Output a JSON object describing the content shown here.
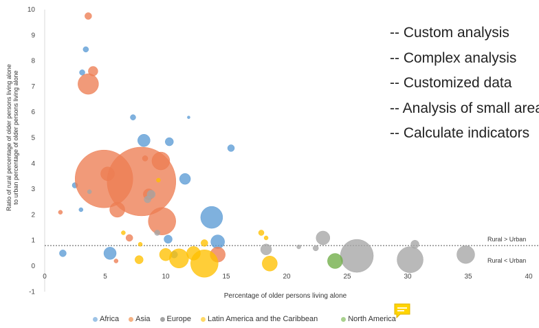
{
  "chart_data": {
    "type": "scatter",
    "xlabel": "Percentage of older persons living alone",
    "ylabel": "Ratio of rural percentage of older persons living alone to urban percentage of older persons living alone",
    "x_ticks": [
      "0",
      "5",
      "10",
      "15",
      "20",
      "25",
      "30",
      "35",
      "40"
    ],
    "y_ticks": [
      "-1",
      "0",
      "1",
      "2",
      "3",
      "4",
      "5",
      "6",
      "7",
      "8",
      "9",
      "10"
    ],
    "xlim": [
      0,
      40
    ],
    "ylim": [
      -1,
      10
    ],
    "reference_line": {
      "y": 0.8,
      "style": "dotted"
    },
    "annotations": [
      "Rural > Urban",
      "Rural < Urban"
    ],
    "series": [
      {
        "name": "Africa",
        "color": "#5b9bd5",
        "points": [
          {
            "x": 1.5,
            "y": 0.5,
            "s": 5
          },
          {
            "x": 3.4,
            "y": 8.45,
            "s": 4
          },
          {
            "x": 3.1,
            "y": 7.55,
            "s": 4
          },
          {
            "x": 2.5,
            "y": 3.15,
            "s": 4
          },
          {
            "x": 3.0,
            "y": 2.2,
            "s": 3
          },
          {
            "x": 7.3,
            "y": 5.8,
            "s": 4
          },
          {
            "x": 8.2,
            "y": 4.9,
            "s": 9
          },
          {
            "x": 10.3,
            "y": 4.85,
            "s": 6
          },
          {
            "x": 11.9,
            "y": 5.8,
            "s": 2
          },
          {
            "x": 15.4,
            "y": 4.6,
            "s": 5
          },
          {
            "x": 11.6,
            "y": 3.4,
            "s": 8
          },
          {
            "x": 13.8,
            "y": 1.9,
            "s": 16
          },
          {
            "x": 14.3,
            "y": 0.95,
            "s": 10
          },
          {
            "x": 10.2,
            "y": 1.05,
            "s": 6
          },
          {
            "x": 5.4,
            "y": 0.5,
            "s": 9
          },
          {
            "x": 10.7,
            "y": 0.45,
            "s": 5
          }
        ]
      },
      {
        "name": "Asia",
        "color": "#ed7d53",
        "points": [
          {
            "x": 3.6,
            "y": 9.75,
            "s": 5
          },
          {
            "x": 4.0,
            "y": 7.6,
            "s": 7
          },
          {
            "x": 3.6,
            "y": 7.1,
            "s": 15
          },
          {
            "x": 4.9,
            "y": 3.4,
            "s": 42
          },
          {
            "x": 8.0,
            "y": 3.3,
            "s": 50
          },
          {
            "x": 9.6,
            "y": 4.1,
            "s": 13
          },
          {
            "x": 5.2,
            "y": 3.6,
            "s": 10
          },
          {
            "x": 6.0,
            "y": 2.2,
            "s": 11
          },
          {
            "x": 9.7,
            "y": 1.75,
            "s": 20
          },
          {
            "x": 8.6,
            "y": 2.8,
            "s": 8
          },
          {
            "x": 7.0,
            "y": 1.1,
            "s": 5
          },
          {
            "x": 5.9,
            "y": 0.2,
            "s": 3
          },
          {
            "x": 1.3,
            "y": 2.1,
            "s": 3
          },
          {
            "x": 14.3,
            "y": 0.45,
            "s": 11
          },
          {
            "x": 8.3,
            "y": 4.2,
            "s": 4
          }
        ]
      },
      {
        "name": "Europe",
        "color": "#a5a5a5",
        "points": [
          {
            "x": 23.0,
            "y": 1.1,
            "s": 10
          },
          {
            "x": 25.8,
            "y": 0.4,
            "s": 24
          },
          {
            "x": 30.2,
            "y": 0.25,
            "s": 19
          },
          {
            "x": 34.8,
            "y": 0.45,
            "s": 13
          },
          {
            "x": 18.3,
            "y": 0.65,
            "s": 8
          },
          {
            "x": 30.6,
            "y": 0.85,
            "s": 6
          },
          {
            "x": 21.0,
            "y": 0.75,
            "s": 3
          },
          {
            "x": 22.4,
            "y": 0.7,
            "s": 4
          },
          {
            "x": 8.8,
            "y": 2.8,
            "s": 6
          },
          {
            "x": 8.5,
            "y": 2.6,
            "s": 5
          },
          {
            "x": 9.3,
            "y": 1.3,
            "s": 4
          },
          {
            "x": 3.7,
            "y": 2.9,
            "s": 3
          }
        ]
      },
      {
        "name": "Latin America and the Caribbean",
        "color": "#ffc000",
        "points": [
          {
            "x": 13.2,
            "y": 0.1,
            "s": 20
          },
          {
            "x": 11.1,
            "y": 0.3,
            "s": 14
          },
          {
            "x": 10.0,
            "y": 0.45,
            "s": 9
          },
          {
            "x": 12.3,
            "y": 0.5,
            "s": 10
          },
          {
            "x": 18.6,
            "y": 0.1,
            "s": 11
          },
          {
            "x": 7.8,
            "y": 0.25,
            "s": 6
          },
          {
            "x": 13.2,
            "y": 0.9,
            "s": 5
          },
          {
            "x": 17.9,
            "y": 1.3,
            "s": 4
          },
          {
            "x": 18.3,
            "y": 1.1,
            "s": 3
          },
          {
            "x": 9.4,
            "y": 3.35,
            "s": 3
          },
          {
            "x": 6.5,
            "y": 1.3,
            "s": 3
          },
          {
            "x": 7.9,
            "y": 0.85,
            "s": 3
          }
        ]
      },
      {
        "name": "North America",
        "color": "#70ad47",
        "points": [
          {
            "x": 24.0,
            "y": 0.2,
            "s": 11
          }
        ]
      }
    ]
  },
  "bullets": [
    "-- Custom analysis",
    "-- Complex analysis",
    "-- Customized data",
    "-- Analysis of small areas",
    "-- Calculate indicators"
  ],
  "legend_items": [
    "Africa",
    "Asia",
    "Europe",
    "Latin America and the Caribbean",
    "North America"
  ],
  "comment_icon": "comment-icon"
}
